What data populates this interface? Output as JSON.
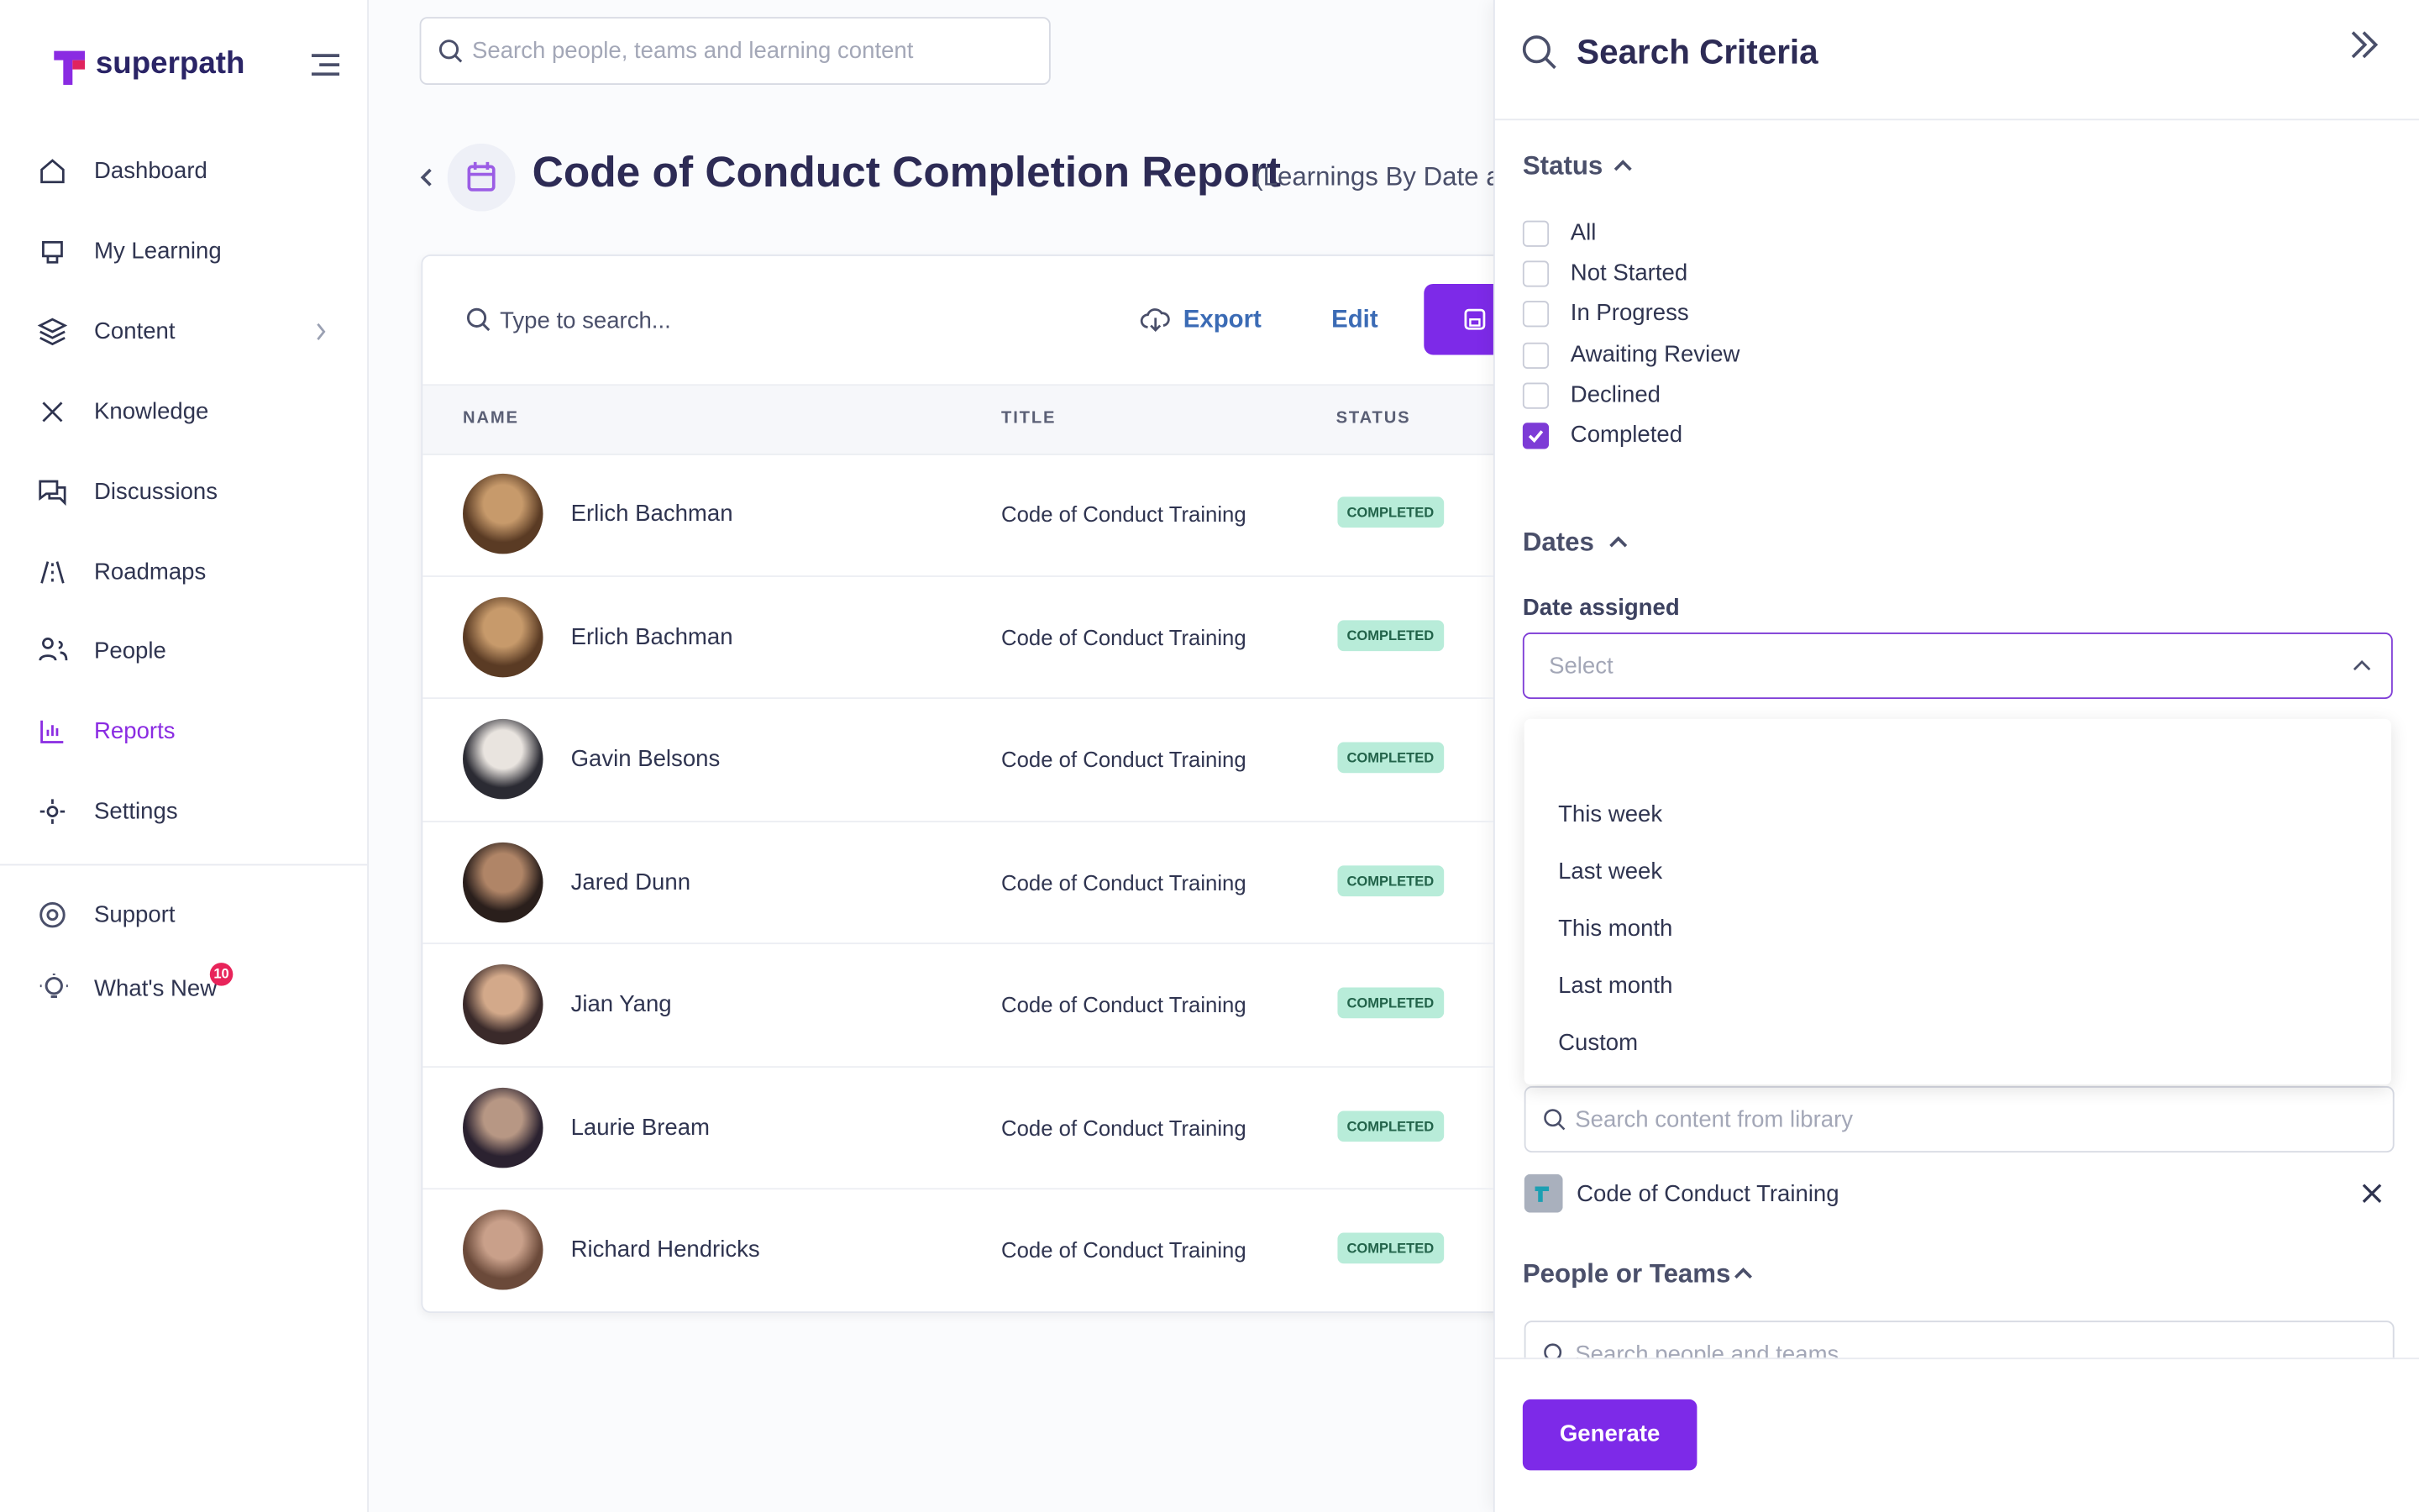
{
  "app": {
    "logo": "superpath",
    "search_placeholder": "Search people, teams and learning content"
  },
  "nav": {
    "items": [
      "Dashboard",
      "My Learning",
      "Content",
      "Knowledge",
      "Discussions",
      "Roadmaps",
      "People",
      "Reports",
      "Settings"
    ],
    "active": 7,
    "support": "Support",
    "whats_new": "What's New",
    "whats_new_badge": "10"
  },
  "report": {
    "title": "Code of Conduct Completion Report",
    "subtitle": "(Learnings By Date a",
    "toolbar": {
      "search_placeholder": "Type to search...",
      "export": "Export",
      "edit": "Edit"
    },
    "table": {
      "headers": [
        "NAME",
        "TITLE",
        "STATUS"
      ],
      "rows": [
        [
          "Erlich Bachman",
          "Code of Conduct Training",
          "COMPLETED"
        ],
        [
          "Erlich Bachman",
          "Code of Conduct Training",
          "COMPLETED"
        ],
        [
          "Gavin Belsons",
          "Code of Conduct Training",
          "COMPLETED"
        ],
        [
          "Jared Dunn",
          "Code of Conduct Training",
          "COMPLETED"
        ],
        [
          "Jian Yang",
          "Code of Conduct Training",
          "COMPLETED"
        ],
        [
          "Laurie Bream",
          "Code of Conduct Training",
          "COMPLETED"
        ],
        [
          "Richard Hendricks",
          "Code of Conduct Training",
          "COMPLETED"
        ]
      ]
    }
  },
  "panel": {
    "title": "Search Criteria",
    "status": {
      "heading": "Status",
      "options": [
        {
          "label": "All",
          "checked": false
        },
        {
          "label": "Not Started",
          "checked": false
        },
        {
          "label": "In Progress",
          "checked": false
        },
        {
          "label": "Awaiting Review",
          "checked": false
        },
        {
          "label": "Declined",
          "checked": false
        },
        {
          "label": "Completed",
          "checked": true
        }
      ]
    },
    "dates": {
      "heading": "Dates",
      "date_assigned": "Date assigned",
      "select_placeholder": "Select",
      "options": [
        "This week",
        "Last week",
        "This month",
        "Last month",
        "Custom"
      ]
    },
    "content": {
      "search_placeholder": "Search content from library",
      "selected": "Code of Conduct Training"
    },
    "people": {
      "heading": "People or Teams",
      "search_placeholder": "Search people and teams"
    },
    "generate": "Generate"
  }
}
